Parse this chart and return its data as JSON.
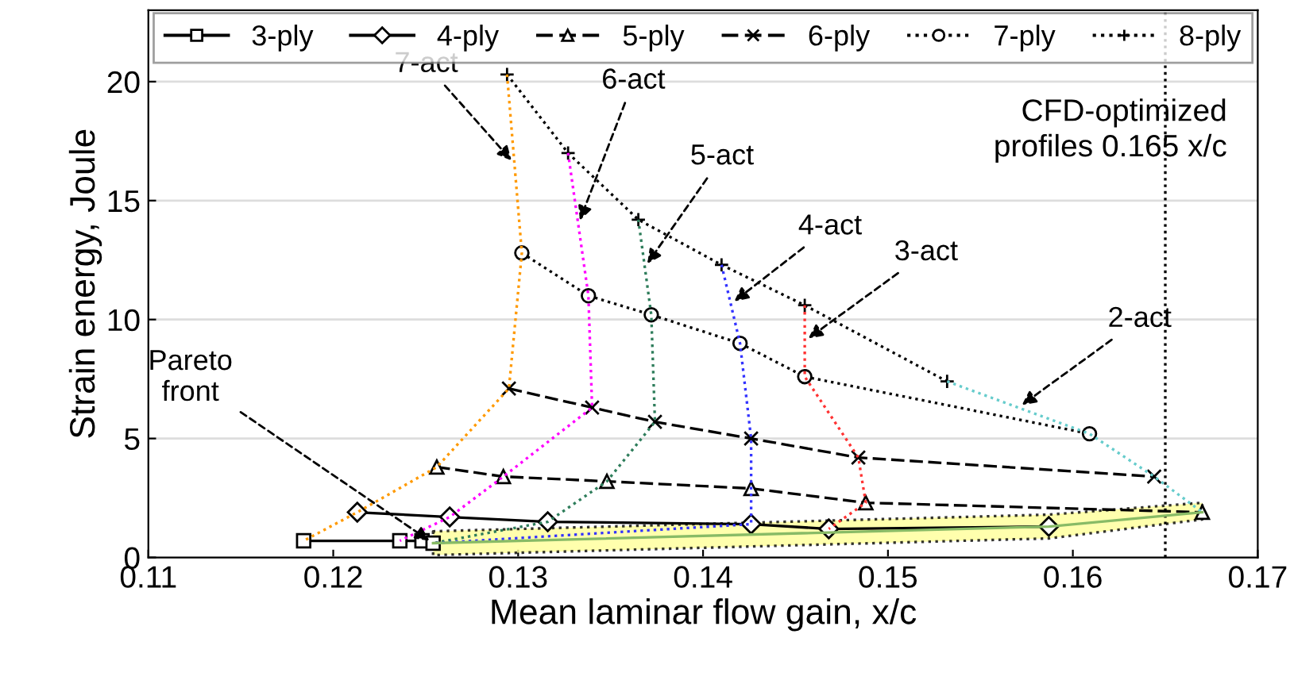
{
  "chart_data": {
    "type": "line",
    "xlabel": "Mean laminar flow gain, x/c",
    "ylabel": "Strain energy, Joule",
    "xlim": [
      0.11,
      0.17
    ],
    "xticks": [
      0.11,
      0.12,
      0.13,
      0.14,
      0.15,
      0.16,
      0.17
    ],
    "ylim": [
      0,
      23
    ],
    "yticks": [
      0,
      5,
      10,
      15,
      20
    ],
    "grid": "y",
    "legend": "top",
    "series": [
      {
        "name": "3-ply",
        "color": "#000000",
        "marker": "square",
        "line_style": "solid",
        "x": [
          0.1184,
          0.1236,
          0.1248,
          0.1254
        ],
        "values": [
          0.7,
          0.7,
          0.7,
          0.6
        ]
      },
      {
        "name": "4-ply",
        "color": "#000000",
        "marker": "diamond",
        "line_style": "solid",
        "x": [
          0.1213,
          0.1263,
          0.1316,
          0.1426,
          0.1468,
          0.1587
        ],
        "values": [
          1.9,
          1.7,
          1.5,
          1.4,
          1.2,
          1.3
        ]
      },
      {
        "name": "5-ply",
        "color": "#000000",
        "marker": "triangle",
        "line_style": "dashed",
        "x": [
          0.1256,
          0.1292,
          0.1348,
          0.1426,
          0.1488,
          0.167
        ],
        "values": [
          3.8,
          3.4,
          3.2,
          2.9,
          2.3,
          1.9
        ]
      },
      {
        "name": "6-ply",
        "color": "#000000",
        "marker": "cross",
        "line_style": "dashed",
        "x": [
          0.1295,
          0.134,
          0.1374,
          0.1426,
          0.1484,
          0.1644
        ],
        "values": [
          7.1,
          6.3,
          5.7,
          5.0,
          4.2,
          3.4
        ]
      },
      {
        "name": "7-ply",
        "color": "#000000",
        "marker": "circle",
        "line_style": "dotted",
        "x": [
          0.1302,
          0.1338,
          0.1372,
          0.142,
          0.1455,
          0.1609
        ],
        "values": [
          12.8,
          11.0,
          10.2,
          9.0,
          7.6,
          5.2
        ]
      },
      {
        "name": "8-ply",
        "color": "#000000",
        "marker": "plus",
        "line_style": "dotted",
        "x": [
          0.1294,
          0.1327,
          0.1365,
          0.141,
          0.1455,
          0.1532
        ],
        "values": [
          20.3,
          17.0,
          14.2,
          12.3,
          10.6,
          7.4
        ]
      },
      {
        "color": "#ff9900",
        "marker": "none",
        "line_style": "dotted",
        "x": [
          0.1294,
          0.1302,
          0.1295,
          0.1256,
          0.1213,
          0.1184
        ],
        "values": [
          20.3,
          12.8,
          7.1,
          3.8,
          1.9,
          0.7
        ]
      },
      {
        "color": "#ff00ff",
        "marker": "none",
        "line_style": "dotted",
        "x": [
          0.1327,
          0.1338,
          0.134,
          0.1292,
          0.1263,
          0.1236
        ],
        "values": [
          17.0,
          11.0,
          6.3,
          3.4,
          1.7,
          0.7
        ]
      },
      {
        "color": "#2e7d5b",
        "marker": "none",
        "line_style": "dotted",
        "x": [
          0.1365,
          0.1372,
          0.1374,
          0.1348,
          0.1316,
          0.1254
        ],
        "values": [
          14.2,
          10.2,
          5.7,
          3.2,
          1.5,
          0.6
        ]
      },
      {
        "color": "#3333ff",
        "marker": "none",
        "line_style": "dotted",
        "x": [
          0.141,
          0.142,
          0.1426,
          0.1426,
          0.1426,
          0.1254
        ],
        "values": [
          12.3,
          9.0,
          5.0,
          2.9,
          1.4,
          0.6
        ]
      },
      {
        "color": "#ff3333",
        "marker": "none",
        "line_style": "dotted",
        "x": [
          0.1455,
          0.1455,
          0.1484,
          0.1488,
          0.1468
        ],
        "values": [
          10.6,
          7.6,
          4.2,
          2.3,
          1.2
        ]
      },
      {
        "color": "#66cccc",
        "marker": "none",
        "line_style": "dotted",
        "x": [
          0.1532,
          0.1609,
          0.1644,
          0.167
        ],
        "values": [
          7.4,
          5.2,
          3.4,
          1.9
        ]
      },
      {
        "color": "#88bb66",
        "marker": "none",
        "line_style": "solid",
        "x": [
          0.1254,
          0.1587,
          0.167
        ],
        "values": [
          0.6,
          1.3,
          1.9
        ],
        "lower": [
          0.1,
          0.8,
          1.6
        ],
        "upper": [
          1.1,
          1.8,
          2.3
        ]
      }
    ],
    "ref_lines": [
      {
        "axis": "x",
        "value": 0.165,
        "label": "CFD-optimized\nprofiles 0.165 x/c",
        "color": "#000000",
        "line_style": "dotted"
      }
    ],
    "annotations": [
      {
        "text": "7-act",
        "x": 0.1298,
        "y": 16.55
      },
      {
        "text": "6-act",
        "x": 0.13325,
        "y": 14.0
      },
      {
        "text": "5-act",
        "x": 0.13685,
        "y": 12.2
      },
      {
        "text": "4-act",
        "x": 0.1415,
        "y": 10.65
      },
      {
        "text": "3-act",
        "x": 0.1455,
        "y": 9.1
      },
      {
        "text": "2-act",
        "x": 0.15705,
        "y": 6.3
      },
      {
        "text": "Pareto\nfront",
        "x": 0.1254,
        "y": 0.6
      }
    ]
  }
}
